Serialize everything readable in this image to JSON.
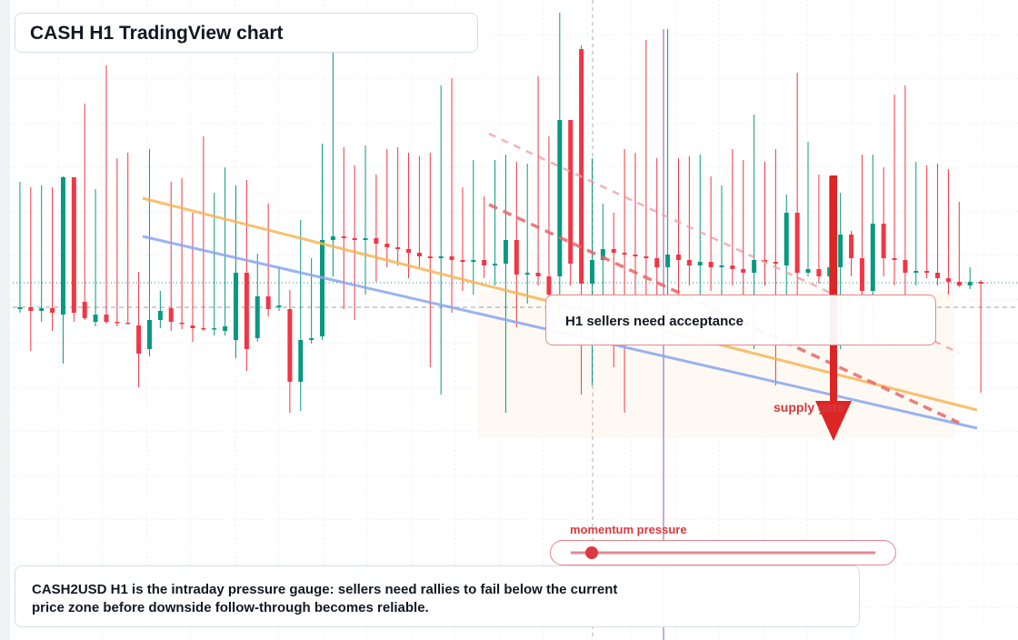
{
  "chart_data": {
    "type": "candlestick",
    "title": "CASH H1 TradingView chart",
    "ylim": [
      0,
      704
    ],
    "up_color": "#089981",
    "down_color": "#f23645",
    "open": [
      364,
      366,
      362,
      365,
      358,
      509,
      372,
      350,
      358,
      350,
      349,
      346,
      320,
      352,
      365,
      349,
      346,
      343,
      342,
      340,
      330,
      404,
      332,
      378,
      366,
      364,
      284,
      330,
      334,
      440,
      444,
      442,
      440,
      442,
      436,
      432,
      430,
      426,
      422,
      420,
      422,
      418,
      416,
      418,
      412,
      414,
      440,
      402,
      404,
      400,
      400,
      572,
      650,
      392,
      418,
      430,
      426,
      424,
      422,
      420,
      410,
      424,
      418,
      412,
      416,
      410,
      412,
      408,
      404,
      418,
      416,
      412,
      470,
      404,
      408,
      400,
      410,
      446,
      420,
      384,
      458,
      420,
      418,
      404,
      406,
      404,
      398,
      394,
      390,
      394
    ],
    "high": [
      504,
      498,
      500,
      498,
      510,
      509,
      590,
      496,
      632,
      530,
      536,
      405,
      540,
      384,
      504,
      508,
      470,
      554,
      492,
      520,
      500,
      506,
      425,
      480,
      410,
      385,
      462,
      420,
      546,
      646,
      542,
      522,
      544,
      512,
      540,
      542,
      536,
      532,
      536,
      610,
      618,
      498,
      528,
      488,
      528,
      534,
      526,
      524,
      620,
      554,
      690,
      572,
      654,
      530,
      480,
      470,
      540,
      536,
      660,
      530,
      672,
      530,
      532,
      534,
      510,
      500,
      540,
      528,
      578,
      526,
      540,
      490,
      624,
      548,
      512,
      510,
      492,
      450,
      534,
      534,
      520,
      600,
      610,
      526,
      522,
      524,
      518,
      482,
      410,
      396
    ],
    "low": [
      360,
      318,
      350,
      340,
      304,
      350,
      352,
      345,
      348,
      345,
      348,
      278,
      312,
      343,
      340,
      342,
      328,
      340,
      335,
      335,
      310,
      296,
      328,
      356,
      362,
      250,
      252,
      326,
      330,
      400,
      364,
      352,
      380,
      394,
      410,
      412,
      398,
      410,
      300,
      270,
      360,
      384,
      380,
      398,
      390,
      250,
      344,
      370,
      390,
      360,
      350,
      390,
      270,
      280,
      360,
      300,
      250,
      360,
      380,
      380,
      360,
      370,
      390,
      380,
      384,
      370,
      390,
      380,
      320,
      390,
      280,
      380,
      330,
      400,
      392,
      380,
      320,
      400,
      326,
      330,
      400,
      390,
      380,
      390,
      398,
      390,
      380,
      388,
      386,
      272
    ],
    "close": [
      366,
      362,
      365,
      360,
      509,
      360,
      354,
      358,
      350,
      349,
      348,
      315,
      352,
      362,
      350,
      348,
      343,
      342,
      343,
      345,
      404,
      320,
      378,
      364,
      368,
      284,
      330,
      332,
      440,
      444,
      442,
      440,
      442,
      436,
      432,
      430,
      426,
      422,
      420,
      422,
      418,
      416,
      418,
      412,
      414,
      440,
      402,
      404,
      400,
      380,
      572,
      414,
      392,
      418,
      430,
      426,
      424,
      422,
      420,
      410,
      424,
      418,
      412,
      416,
      410,
      412,
      408,
      404,
      418,
      416,
      414,
      470,
      404,
      408,
      400,
      410,
      446,
      420,
      384,
      458,
      420,
      418,
      404,
      406,
      404,
      398,
      394,
      390,
      394,
      392
    ],
    "annotations": {
      "callout": "H1 sellers need acceptance",
      "supply_label": "supply gate",
      "momentum_label": "momentum pressure",
      "note": "CASH2USD H1 is the intraday pressure gauge: sellers need rallies to fail below the current price zone before downside follow-through becomes reliable."
    }
  }
}
